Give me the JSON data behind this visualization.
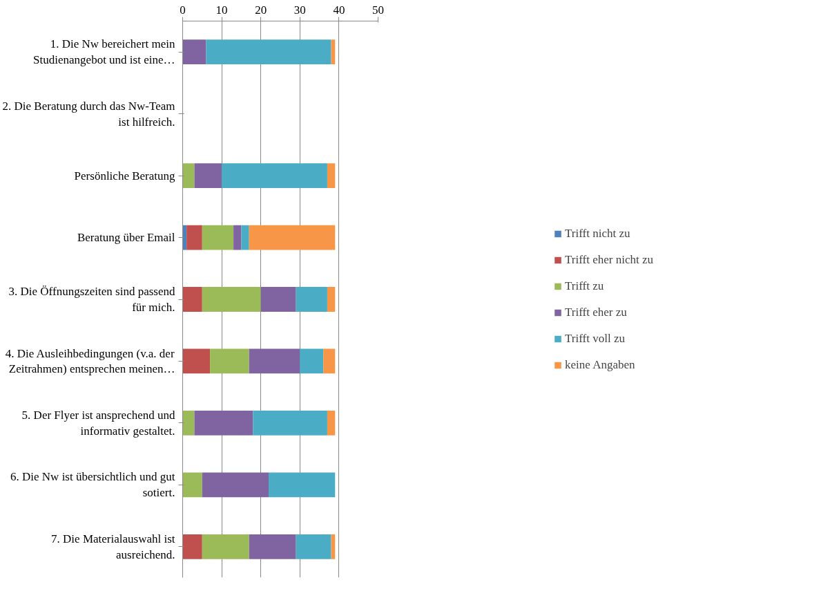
{
  "chart_data": {
    "type": "bar",
    "orientation": "horizontal",
    "stacked": true,
    "categories": [
      "1. Die Nw bereichert mein\nStudienangebot und ist eine…",
      "2. Die Beratung durch das Nw-Team\nist hilfreich.",
      "Persönliche Beratung",
      "Beratung über Email",
      "3. Die Öffnungszeiten sind passend\nfür mich.",
      "4. Die Ausleihbedingungen (v.a. der\nZeitrahmen) entsprechen meinen…",
      "5. Der Flyer ist ansprechend und\ninformativ gestaltet.",
      "6. Die Nw ist übersichtlich und gut\nsotiert.",
      "7. Die Materialauswahl ist\nausreichend."
    ],
    "series": [
      {
        "name": "Trifft nicht zu",
        "color": "#4f81bd",
        "values": [
          null,
          null,
          null,
          1,
          null,
          null,
          null,
          null,
          null
        ]
      },
      {
        "name": "Trifft eher nicht zu",
        "color": "#c0504d",
        "values": [
          null,
          null,
          null,
          4,
          5,
          7,
          null,
          null,
          5
        ]
      },
      {
        "name": "Trifft zu",
        "color": "#9bbb59",
        "values": [
          null,
          null,
          3,
          8,
          15,
          10,
          3,
          5,
          12
        ]
      },
      {
        "name": "Trifft eher zu",
        "color": "#8064a2",
        "values": [
          6,
          null,
          7,
          2,
          9,
          13,
          15,
          17,
          12
        ]
      },
      {
        "name": "Trifft voll zu",
        "color": "#4bacc6",
        "values": [
          32,
          null,
          27,
          2,
          8,
          6,
          19,
          17,
          9
        ]
      },
      {
        "name": "keine Angaben",
        "color": "#f79646",
        "values": [
          1,
          null,
          2,
          22,
          2,
          3,
          2,
          null,
          1
        ]
      }
    ],
    "xlim": [
      0,
      50
    ],
    "xticks": [
      0,
      10,
      20,
      30,
      40,
      50
    ],
    "grid": "x",
    "legend": "right"
  }
}
